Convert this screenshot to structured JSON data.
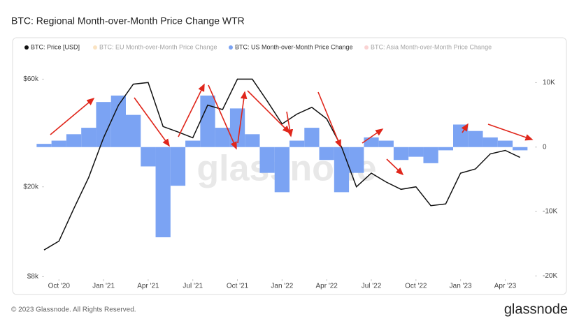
{
  "chart_data": {
    "type": "bar-line",
    "title": "BTC: Regional Month-over-Month Price Change WTR",
    "watermark": "glassnode",
    "footer": "© 2023 Glassnode. All Rights Reserved.",
    "brand": "glassnode",
    "x": [
      "2020-09",
      "2020-10",
      "2020-11",
      "2020-12",
      "2021-01",
      "2021-02",
      "2021-03",
      "2021-04",
      "2021-05",
      "2021-06",
      "2021-07",
      "2021-08",
      "2021-09",
      "2021-10",
      "2021-11",
      "2021-12",
      "2022-01",
      "2022-02",
      "2022-03",
      "2022-04",
      "2022-05",
      "2022-06",
      "2022-07",
      "2022-08",
      "2022-09",
      "2022-10",
      "2022-11",
      "2022-12",
      "2023-01",
      "2023-02",
      "2023-03",
      "2023-04",
      "2023-05"
    ],
    "xlim": [
      "2020-09",
      "2023-06"
    ],
    "xticks": [
      {
        "value": "2020-10",
        "label": "Oct '20"
      },
      {
        "value": "2021-01",
        "label": "Jan '21"
      },
      {
        "value": "2021-04",
        "label": "Apr '21"
      },
      {
        "value": "2021-07",
        "label": "Jul '21"
      },
      {
        "value": "2021-10",
        "label": "Oct '21"
      },
      {
        "value": "2022-01",
        "label": "Jan '22"
      },
      {
        "value": "2022-04",
        "label": "Apr '22"
      },
      {
        "value": "2022-07",
        "label": "Jul '22"
      },
      {
        "value": "2022-10",
        "label": "Oct '22"
      },
      {
        "value": "2023-01",
        "label": "Jan '23"
      },
      {
        "value": "2023-04",
        "label": "Apr '23"
      }
    ],
    "log_y": true,
    "ylim": [
      7800,
      66000
    ],
    "yticks": [
      {
        "value": 8000,
        "label": "$8k"
      },
      {
        "value": 20000,
        "label": "$20k"
      },
      {
        "value": 60000,
        "label": "$60k"
      }
    ],
    "y2lim": [
      -20500,
      12000
    ],
    "y2ticks": [
      {
        "value": 10000,
        "label": "10K"
      },
      0,
      {
        "value": -10000,
        "label": "-10K"
      },
      {
        "value": -20000,
        "label": "-20K"
      }
    ],
    "series": [
      {
        "name": "BTC: Price [USD]",
        "color": "#111111",
        "kind": "line",
        "visible": true,
        "values": [
          10500,
          11500,
          16000,
          22000,
          33000,
          46000,
          57000,
          58000,
          37000,
          35000,
          33000,
          46000,
          44000,
          60000,
          60000,
          48000,
          38000,
          42000,
          45000,
          40000,
          30000,
          20000,
          23000,
          21000,
          19500,
          20000,
          16500,
          16800,
          23000,
          24000,
          28000,
          29000,
          27000
        ]
      },
      {
        "name": "BTC: EU Month-over-Month Price Change",
        "color": "#f5c27a",
        "kind": "bar",
        "axis": "y2",
        "visible": false,
        "values": [
          null,
          null,
          null,
          null,
          null,
          null,
          null,
          null,
          null,
          null,
          null,
          null,
          null,
          null,
          null,
          null,
          null,
          null,
          null,
          null,
          null,
          null,
          null,
          null,
          null,
          null,
          null,
          null,
          null,
          null,
          null,
          null,
          null
        ]
      },
      {
        "name": "BTC: US Month-over-Month Price Change",
        "color": "#7ba3f3",
        "kind": "bar",
        "axis": "y2",
        "visible": true,
        "values": [
          500,
          1000,
          2000,
          3000,
          7000,
          8000,
          5000,
          -3000,
          -14000,
          -6000,
          1000,
          8000,
          3000,
          6000,
          2000,
          -4000,
          -7000,
          1000,
          3000,
          -2000,
          -7000,
          -4000,
          1500,
          1000,
          -2000,
          -1500,
          -2500,
          -500,
          3500,
          2500,
          1500,
          1000,
          -500
        ]
      },
      {
        "name": "BTC: Asia Month-over-Month Price Change",
        "color": "#f5a0a0",
        "kind": "bar",
        "axis": "y2",
        "visible": false,
        "values": [
          null,
          null,
          null,
          null,
          null,
          null,
          null,
          null,
          null,
          null,
          null,
          null,
          null,
          null,
          null,
          null,
          null,
          null,
          null,
          null,
          null,
          null,
          null,
          null,
          null,
          null,
          null,
          null,
          null,
          null,
          null,
          null,
          null
        ]
      }
    ]
  }
}
